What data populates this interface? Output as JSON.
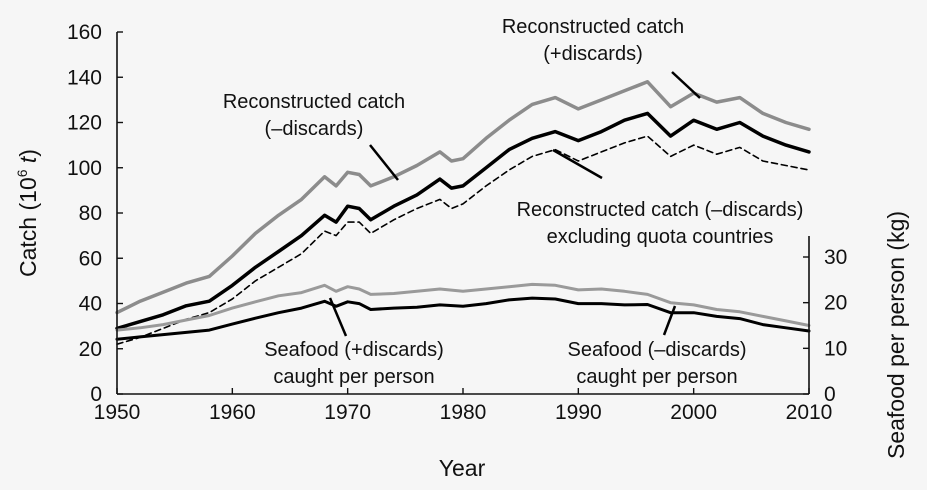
{
  "chart_data": {
    "type": "line",
    "title": "",
    "xlabel": "Year",
    "ylabel": "Catch (10⁶ t)",
    "ylabel_parts": [
      "Catch (10",
      "6",
      " ",
      "t",
      ")"
    ],
    "y2label": "Seafood per person (kg)",
    "xlim": [
      1950,
      2010
    ],
    "ylim": [
      0,
      160
    ],
    "y2lim": [
      0,
      35
    ],
    "x_ticks": [
      "1950",
      "1960",
      "1970",
      "1980",
      "1990",
      "2000",
      "2010"
    ],
    "y_ticks": [
      "0",
      "20",
      "40",
      "60",
      "80",
      "100",
      "120",
      "140",
      "160"
    ],
    "y2_ticks": [
      "0",
      "10",
      "20",
      "30"
    ],
    "grid": false,
    "legend": "none",
    "series": [
      {
        "name": "Reconstructed catch (+discards)",
        "axis": "left",
        "color": "#8c8c8c",
        "dash": false,
        "width": 3.5,
        "x": [
          1950,
          1952,
          1954,
          1956,
          1958,
          1960,
          1962,
          1964,
          1966,
          1968,
          1969,
          1970,
          1971,
          1972,
          1974,
          1976,
          1978,
          1979,
          1980,
          1982,
          1984,
          1986,
          1988,
          1990,
          1992,
          1994,
          1996,
          1998,
          2000,
          2002,
          2004,
          2006,
          2008,
          2010
        ],
        "y": [
          36,
          41,
          45,
          49,
          52,
          61,
          71,
          79,
          86,
          96,
          92,
          98,
          97,
          92,
          96,
          101,
          107,
          103,
          104,
          113,
          121,
          128,
          131,
          126,
          130,
          134,
          138,
          127,
          133,
          129,
          131,
          124,
          120,
          117
        ]
      },
      {
        "name": "Reconstructed catch (–discards)",
        "axis": "left",
        "color": "#000000",
        "dash": false,
        "width": 3.5,
        "x": [
          1950,
          1952,
          1954,
          1956,
          1958,
          1960,
          1962,
          1964,
          1966,
          1968,
          1969,
          1970,
          1971,
          1972,
          1974,
          1976,
          1978,
          1979,
          1980,
          1982,
          1984,
          1986,
          1988,
          1990,
          1992,
          1994,
          1996,
          1998,
          2000,
          2002,
          2004,
          2006,
          2008,
          2010
        ],
        "y": [
          29,
          32,
          35,
          39,
          41,
          48,
          56,
          63,
          70,
          79,
          76,
          83,
          82,
          77,
          83,
          88,
          95,
          91,
          92,
          100,
          108,
          113,
          116,
          112,
          116,
          121,
          124,
          114,
          121,
          117,
          120,
          114,
          110,
          107
        ]
      },
      {
        "name": "Reconstructed catch (–discards) excluding quota countries",
        "axis": "left",
        "color": "#000000",
        "dash": true,
        "width": 1.6,
        "x": [
          1950,
          1952,
          1954,
          1956,
          1958,
          1960,
          1962,
          1964,
          1966,
          1968,
          1969,
          1970,
          1971,
          1972,
          1974,
          1976,
          1978,
          1979,
          1980,
          1982,
          1984,
          1986,
          1988,
          1990,
          1992,
          1994,
          1996,
          1998,
          2000,
          2002,
          2004,
          2006,
          2008,
          2010
        ],
        "y": [
          22,
          25,
          29,
          33,
          36,
          42,
          50,
          56,
          62,
          72,
          70,
          76,
          76,
          71,
          77,
          82,
          86,
          82,
          84,
          92,
          99,
          105,
          108,
          103,
          107,
          111,
          114,
          105,
          110,
          106,
          109,
          103,
          101,
          99
        ]
      },
      {
        "name": "Seafood (+discards) caught per person",
        "axis": "right",
        "color": "#9a9a9a",
        "dash": false,
        "width": 3,
        "x": [
          1950,
          1952,
          1954,
          1956,
          1958,
          1960,
          1962,
          1964,
          1966,
          1968,
          1969,
          1970,
          1971,
          1972,
          1974,
          1976,
          1978,
          1980,
          1982,
          1984,
          1986,
          1988,
          1990,
          1992,
          1994,
          1996,
          1998,
          2000,
          2002,
          2004,
          2006,
          2008,
          2010
        ],
        "y": [
          14,
          14.5,
          15.2,
          16.2,
          17.2,
          18.8,
          20.2,
          21.5,
          22.2,
          23.8,
          22.5,
          23.5,
          23,
          21.8,
          22,
          22.5,
          23,
          22.5,
          23,
          23.5,
          24,
          23.8,
          22.8,
          23,
          22.5,
          21.8,
          20,
          19.5,
          18.5,
          18,
          17,
          16,
          15
        ]
      },
      {
        "name": "Seafood (–discards) caught per person",
        "axis": "right",
        "color": "#000000",
        "dash": false,
        "width": 3,
        "x": [
          1950,
          1952,
          1954,
          1956,
          1958,
          1960,
          1962,
          1964,
          1966,
          1968,
          1969,
          1970,
          1971,
          1972,
          1974,
          1976,
          1978,
          1980,
          1982,
          1984,
          1986,
          1988,
          1990,
          1992,
          1994,
          1996,
          1998,
          2000,
          2002,
          2004,
          2006,
          2008,
          2010
        ],
        "y": [
          12,
          12.5,
          13,
          13.5,
          14,
          15.3,
          16.6,
          17.8,
          18.8,
          20.3,
          19.2,
          20.2,
          19.8,
          18.5,
          18.8,
          19,
          19.5,
          19.2,
          19.8,
          20.6,
          21,
          20.8,
          19.8,
          19.8,
          19.5,
          19.6,
          17.8,
          17.8,
          17,
          16.5,
          15.2,
          14.5,
          13.8
        ]
      }
    ],
    "annotations": [
      {
        "lines": [
          "Reconstructed catch",
          "(+discards)"
        ]
      },
      {
        "lines": [
          "Reconstructed catch",
          "(–discards)"
        ]
      },
      {
        "lines": [
          "Reconstructed catch (–discards)",
          "excluding quota countries"
        ]
      },
      {
        "lines": [
          "Seafood (+discards)",
          "caught per person"
        ]
      },
      {
        "lines": [
          "Seafood (–discards)",
          "caught per person"
        ]
      }
    ]
  }
}
